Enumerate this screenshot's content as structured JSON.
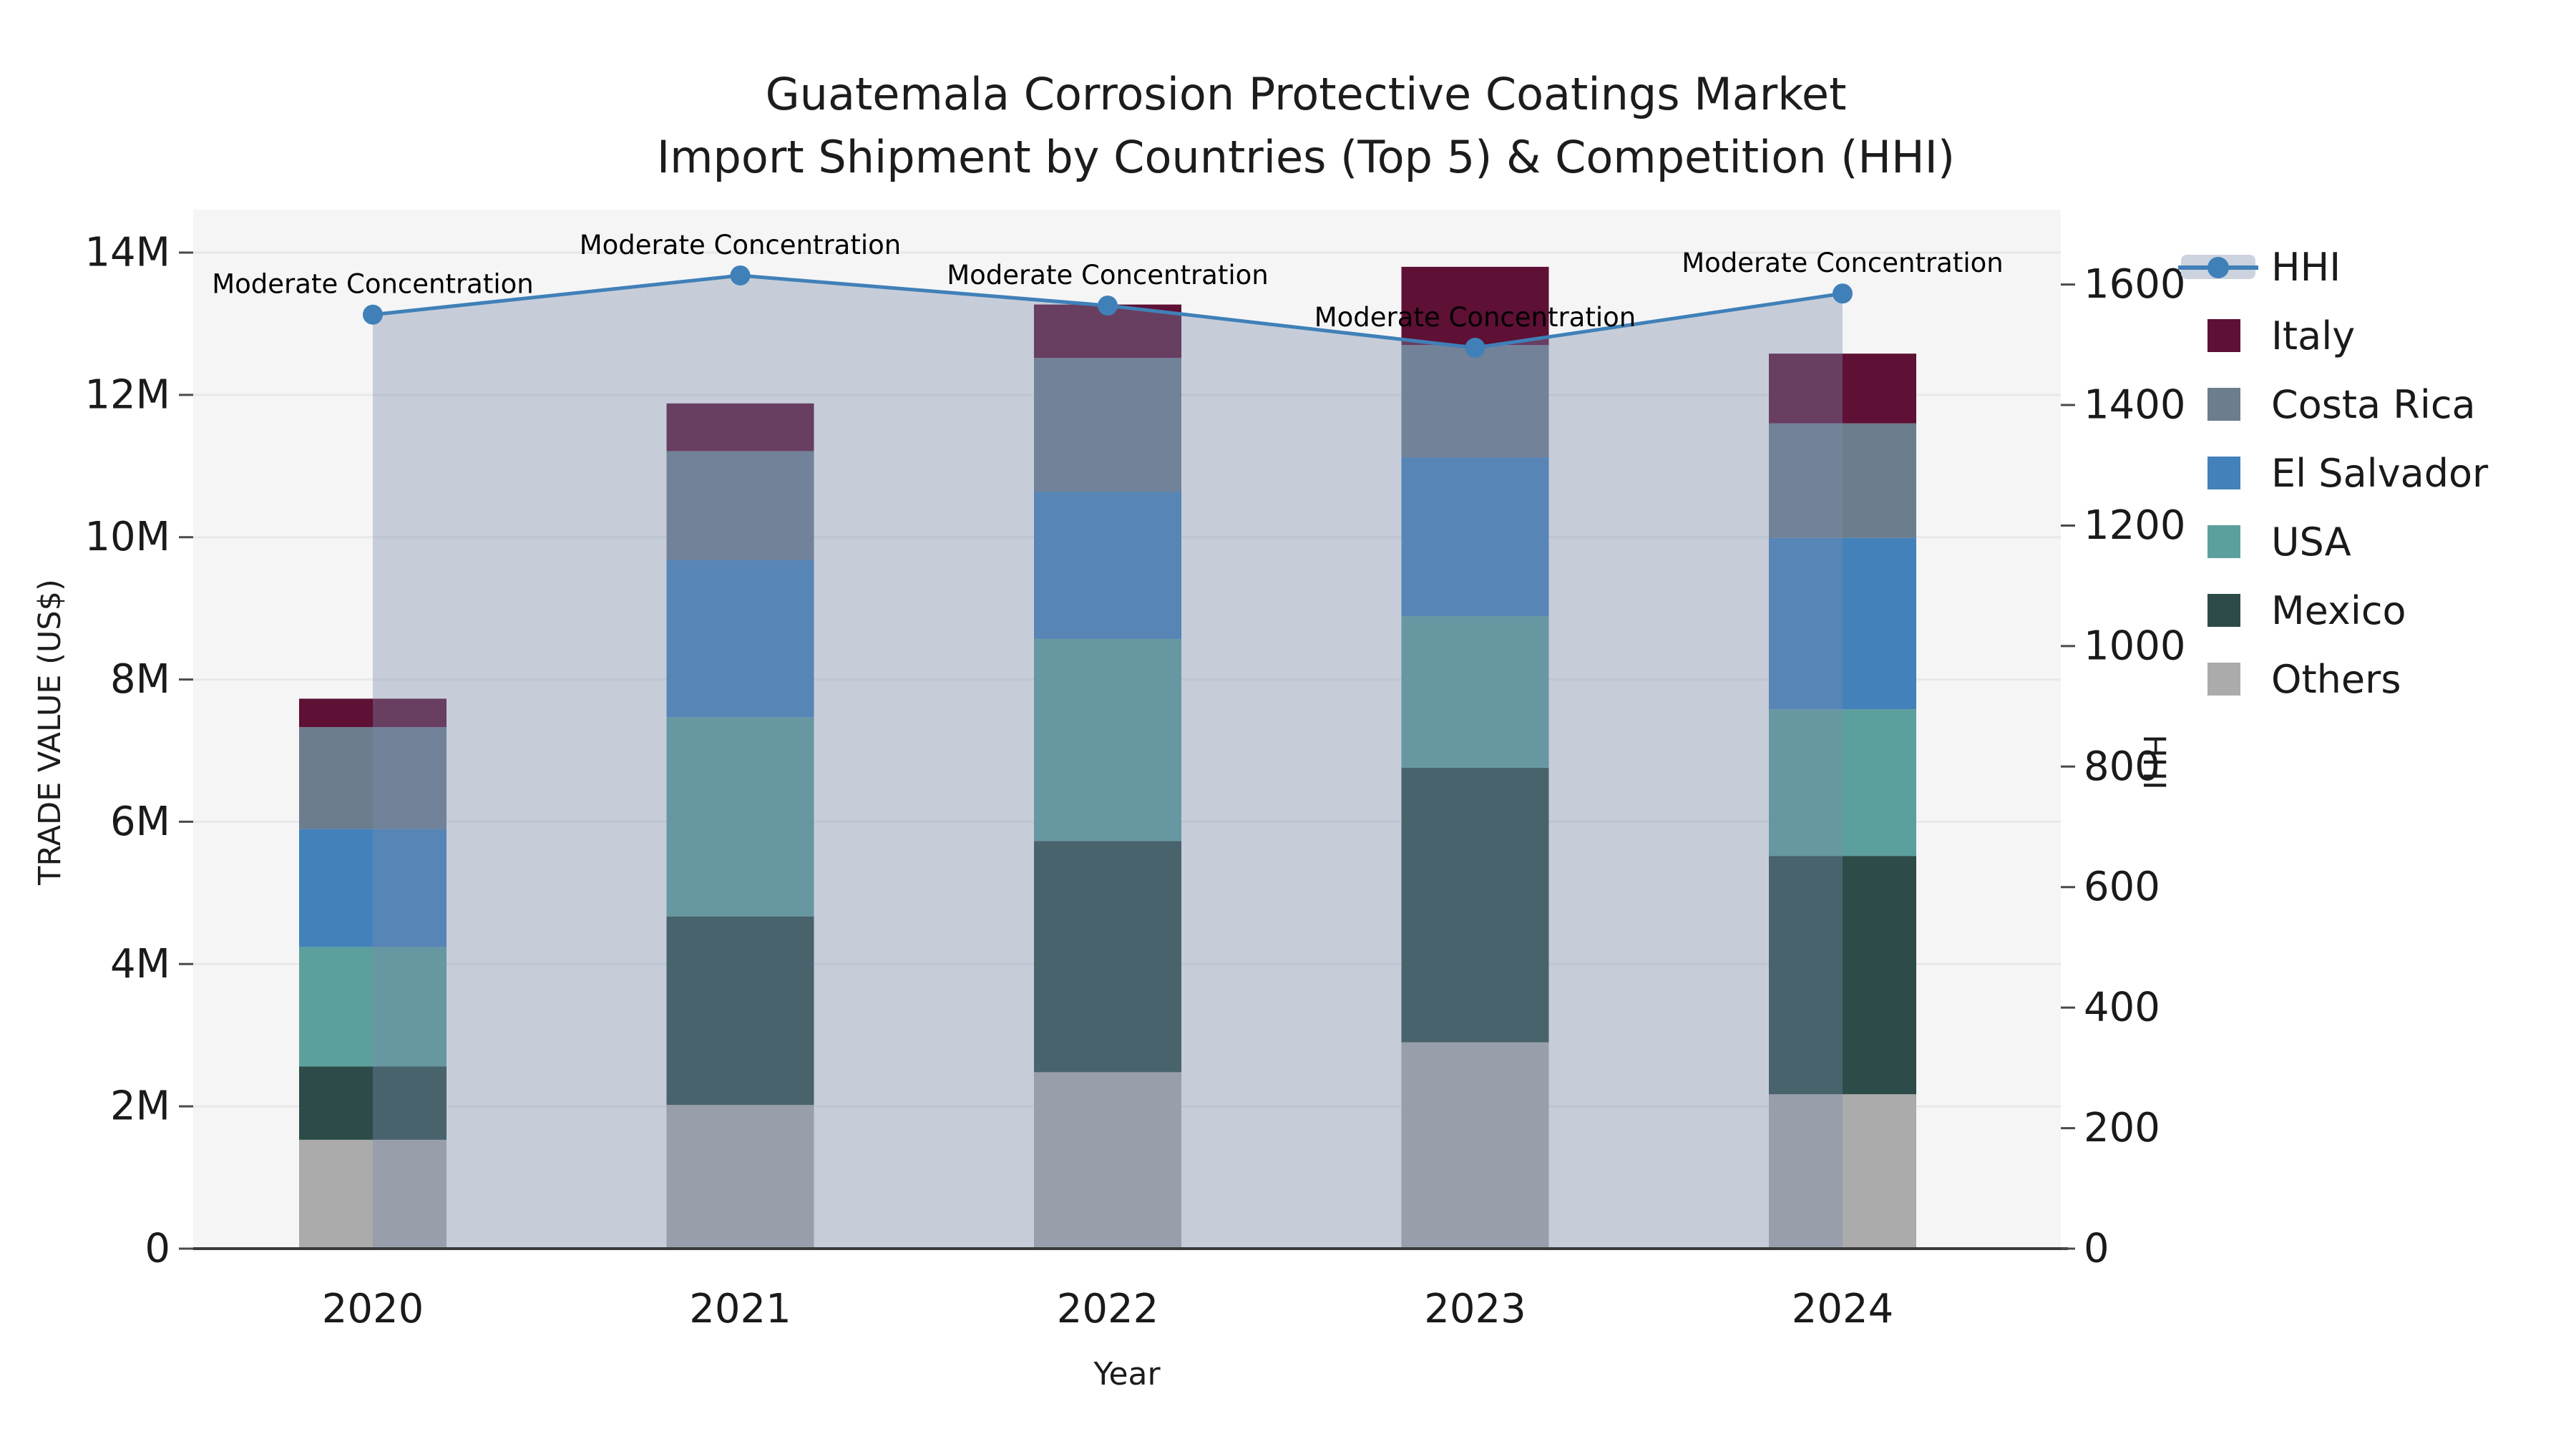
{
  "title": {
    "line1": "Guatemala Corrosion Protective Coatings Market",
    "line2": "Import Shipment by Countries (Top 5) & Competition (HHI)"
  },
  "axes": {
    "x": {
      "label": "Year",
      "categories": [
        "2020",
        "2021",
        "2022",
        "2023",
        "2024"
      ]
    },
    "y_left": {
      "label": "TRADE VALUE (US$)",
      "ticks": [
        "0",
        "2M",
        "4M",
        "6M",
        "8M",
        "10M",
        "12M",
        "14M"
      ]
    },
    "y_right": {
      "label": "HHI",
      "ticks": [
        "0",
        "200",
        "400",
        "600",
        "800",
        "1000",
        "1200",
        "1400",
        "1600"
      ]
    }
  },
  "legend": [
    {
      "label": "HHI",
      "type": "line",
      "color": "#4080B8",
      "band_color": "#CCD3DE"
    },
    {
      "label": "Italy",
      "type": "swatch",
      "color": "#5E1035"
    },
    {
      "label": "Costa Rica",
      "type": "swatch",
      "color": "#6C7D8E"
    },
    {
      "label": "El Salvador",
      "type": "swatch",
      "color": "#4381BB"
    },
    {
      "label": "USA",
      "type": "swatch",
      "color": "#5CA09D"
    },
    {
      "label": "Mexico",
      "type": "swatch",
      "color": "#2D4B48"
    },
    {
      "label": "Others",
      "type": "swatch",
      "color": "#ABABAB"
    }
  ],
  "chart_data": {
    "type": "combo: stacked bar (left axis) + line with area fill (right axis)",
    "title": "Guatemala Corrosion Protective Coatings Market — Import Shipment by Countries (Top 5) & Competition (HHI)",
    "xlabel": "Year",
    "ylabel_left": "TRADE VALUE (US$)",
    "ylabel_right": "HHI",
    "categories": [
      "2020",
      "2021",
      "2022",
      "2023",
      "2024"
    ],
    "units": "million US$",
    "ylim_left_musd": [
      0,
      14.6
    ],
    "ylim_right": [
      0,
      1724
    ],
    "grid": "horizontal gridlines every 2M, light on #f5f5f6 panel",
    "bar_series_bottom_to_top": [
      {
        "name": "Others",
        "color": "#ABABAB",
        "values_musd": [
          1.53,
          2.02,
          2.48,
          2.9,
          2.17
        ]
      },
      {
        "name": "Mexico",
        "color": "#2D4B48",
        "values_musd": [
          1.03,
          2.65,
          3.25,
          3.86,
          3.35
        ]
      },
      {
        "name": "USA",
        "color": "#5CA09D",
        "values_musd": [
          1.68,
          2.8,
          2.84,
          2.13,
          2.06
        ]
      },
      {
        "name": "El Salvador",
        "color": "#4381BB",
        "values_musd": [
          1.66,
          2.21,
          2.07,
          2.23,
          2.41
        ]
      },
      {
        "name": "Costa Rica",
        "color": "#6C7D8E",
        "values_musd": [
          1.43,
          1.53,
          1.88,
          1.58,
          1.61
        ]
      },
      {
        "name": "Italy",
        "color": "#5E1035",
        "values_musd": [
          0.4,
          0.67,
          0.75,
          1.1,
          0.98
        ]
      }
    ],
    "bar_totals_musd": [
      7.73,
      11.88,
      13.27,
      13.8,
      12.58
    ],
    "line_series": {
      "name": "HHI",
      "color": "#4080B8",
      "values": [
        1550,
        1615,
        1565,
        1495,
        1585
      ],
      "area_fill": "rgba(122,140,170,0.38)",
      "annotations": [
        "Moderate Concentration",
        "Moderate Concentration",
        "Moderate Concentration",
        "Moderate Concentration",
        "Moderate Concentration"
      ]
    }
  }
}
